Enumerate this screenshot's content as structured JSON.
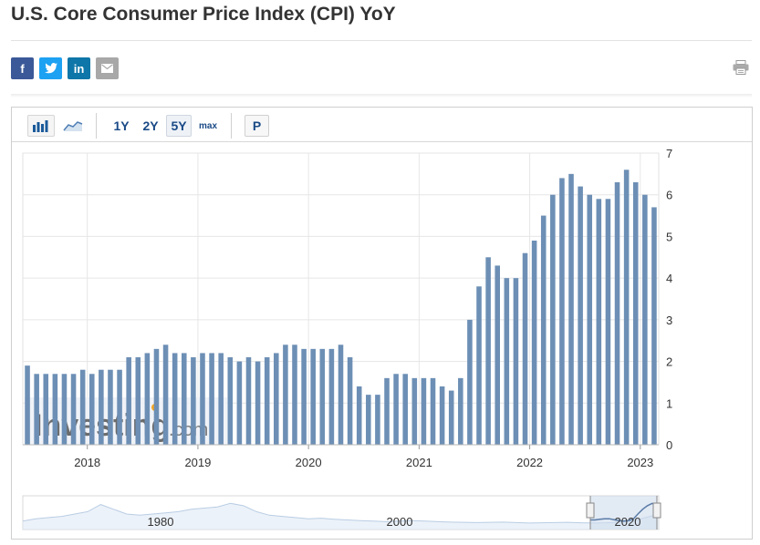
{
  "page": {
    "title": "U.S. Core Consumer Price Index (CPI) YoY"
  },
  "share": {
    "facebook": {
      "glyph": "f",
      "color": "#3b5998",
      "icon": "facebook-icon"
    },
    "twitter": {
      "glyph": "t",
      "color": "#1da1f2",
      "icon": "twitter-icon"
    },
    "linkedin": {
      "glyph": "in",
      "color": "#0e76a8",
      "icon": "linkedin-icon"
    },
    "email": {
      "glyph": "✉",
      "color": "#a8a8a8",
      "icon": "email-icon"
    }
  },
  "toolbar": {
    "ranges": [
      "1Y",
      "2Y",
      "5Y",
      "max"
    ],
    "active_range": "5Y",
    "p_label": "P"
  },
  "colors": {
    "bar": "#6d8fb5",
    "grid": "#e6e6e6",
    "navigator_fill": "#dfe9f5",
    "navigator_line": "#5a7ca8"
  },
  "watermark": {
    "brand": "Investing",
    "suffix": ".com"
  },
  "navigator": {
    "labels": [
      "1980",
      "2000",
      "2020"
    ]
  },
  "chart_data": {
    "type": "bar",
    "title": "U.S. Core Consumer Price Index (CPI) YoY",
    "xlabel": "",
    "ylabel": "",
    "ylim": [
      0,
      7
    ],
    "y_ticks": [
      0,
      1,
      2,
      3,
      4,
      5,
      6,
      7
    ],
    "x_tick_labels": [
      "2018",
      "2019",
      "2020",
      "2021",
      "2022",
      "2023"
    ],
    "y_axis_position": "right",
    "grid": true,
    "x_start": "2017-06",
    "x_end": "2023-02",
    "values": [
      1.9,
      1.7,
      1.7,
      1.7,
      1.7,
      1.7,
      1.8,
      1.7,
      1.8,
      1.8,
      1.8,
      2.1,
      2.1,
      2.2,
      2.3,
      2.4,
      2.2,
      2.2,
      2.1,
      2.2,
      2.2,
      2.2,
      2.1,
      2.0,
      2.1,
      2.0,
      2.1,
      2.2,
      2.4,
      2.4,
      2.3,
      2.3,
      2.3,
      2.3,
      2.4,
      2.1,
      1.4,
      1.2,
      1.2,
      1.6,
      1.7,
      1.7,
      1.6,
      1.6,
      1.6,
      1.4,
      1.3,
      1.6,
      3.0,
      3.8,
      4.5,
      4.3,
      4.0,
      4.0,
      4.6,
      4.9,
      5.5,
      6.0,
      6.4,
      6.5,
      6.2,
      6.0,
      5.9,
      5.9,
      6.3,
      6.6,
      6.3,
      6.0,
      5.7
    ]
  }
}
